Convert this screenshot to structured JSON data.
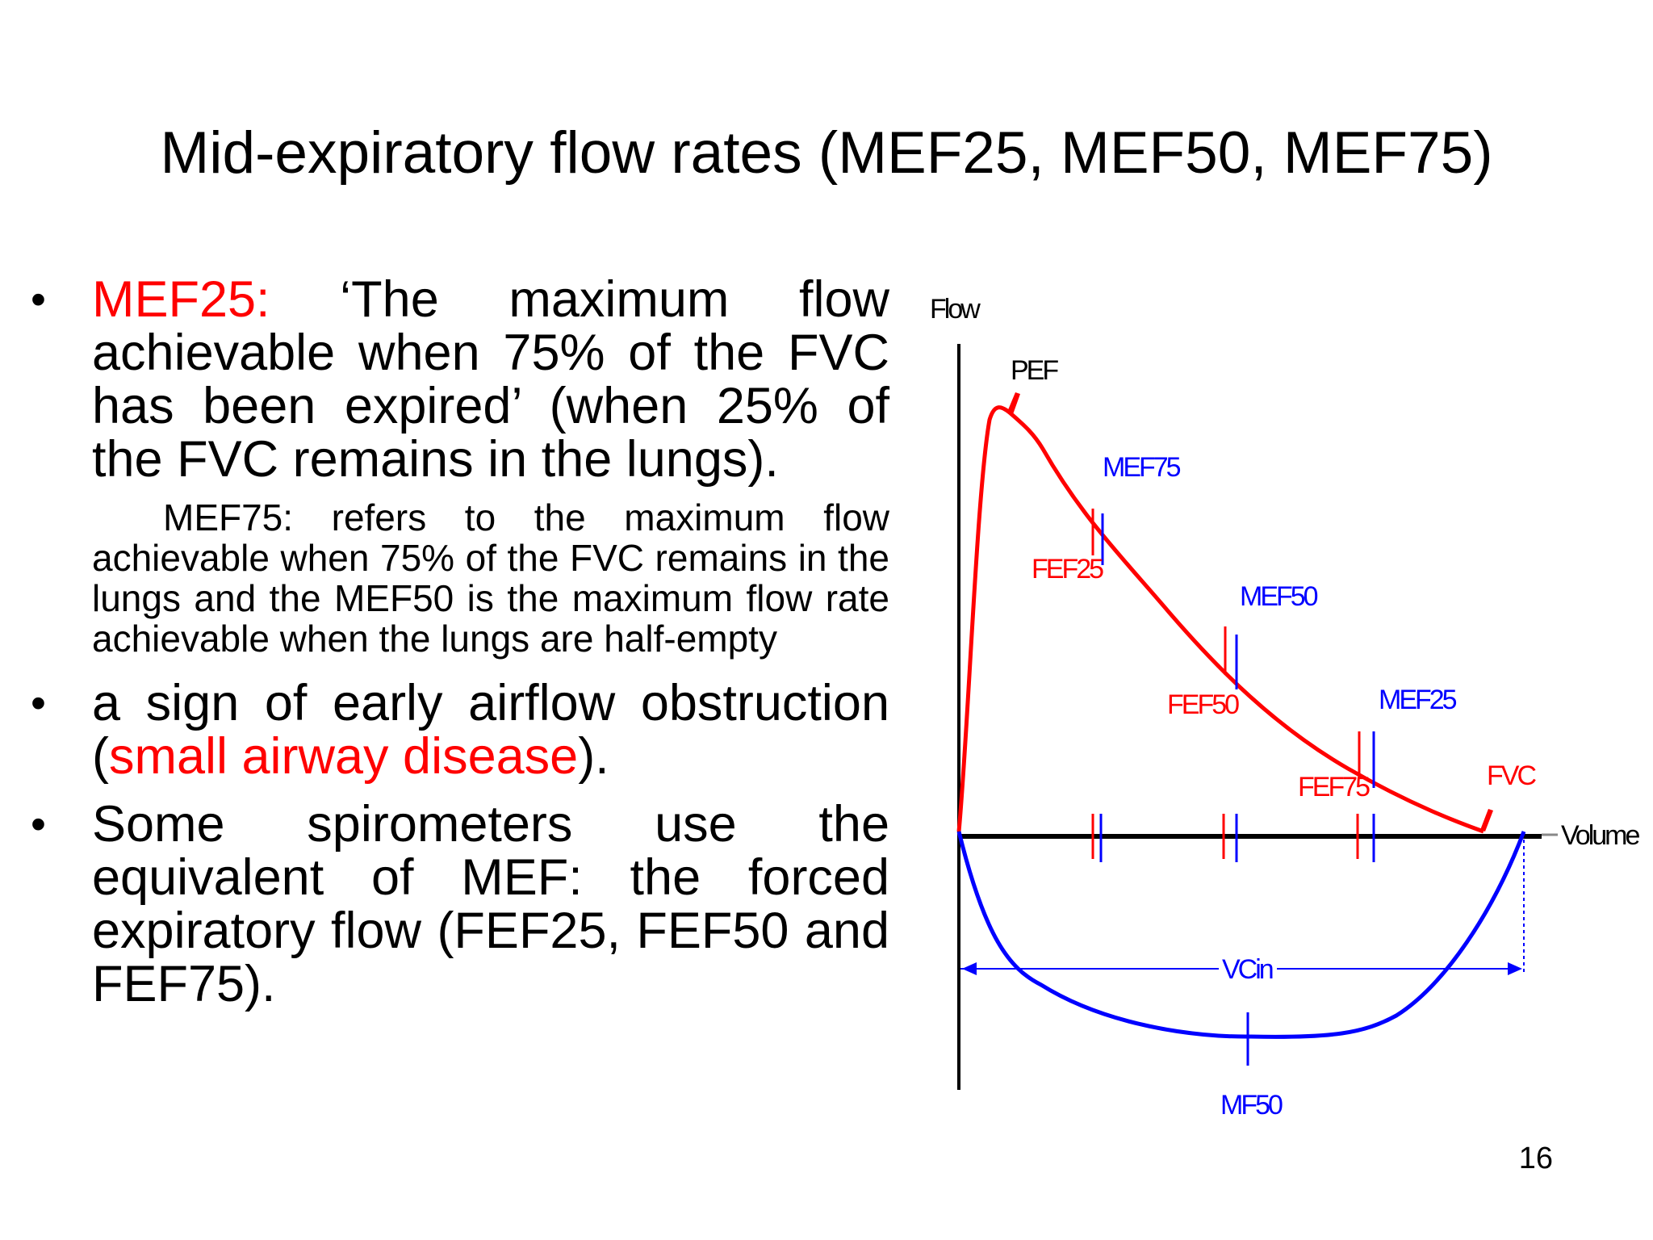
{
  "slide": {
    "title": "Mid-expiratory flow rates (MEF25, MEF50, MEF75)",
    "page_number": "16"
  },
  "bullets": [
    {
      "label": "MEF25:",
      "text": " ‘The maximum flow achievable when 75% of the FVC has been expired’ (when 25% of the FVC remains in the lungs).",
      "sub_text": "MEF75: refers to the maximum flow achievable when 75% of the FVC remains in the lungs and the MEF50 is the maximum flow rate achievable when the lungs are half-empty"
    },
    {
      "text_before": "a sign of early airflow obstruction (",
      "highlight": "small airway disease",
      "text_after": ")."
    },
    {
      "text": "Some spirometers use the equivalent of MEF: the forced expiratory flow (FEF25, FEF50 and FEF75)."
    }
  ],
  "bullet_symbol": "•",
  "diagram": {
    "labels": {
      "flow_axis": "Flow",
      "volume_axis": "Volume",
      "pef": "PEF",
      "mef75": "MEF75",
      "fef25": "FEF25",
      "mef50": "MEF50",
      "fef50": "FEF50",
      "mef25": "MEF25",
      "fef75": "FEF75",
      "fvc": "FVC",
      "vcin": "VCin",
      "mf50": "MF50"
    },
    "colors": {
      "expiratory_curve": "#ff0000",
      "inspiratory_curve": "#0000ff",
      "axis": "#000000",
      "fef_marker": "#ff0000",
      "mef_marker": "#0000ff"
    }
  }
}
